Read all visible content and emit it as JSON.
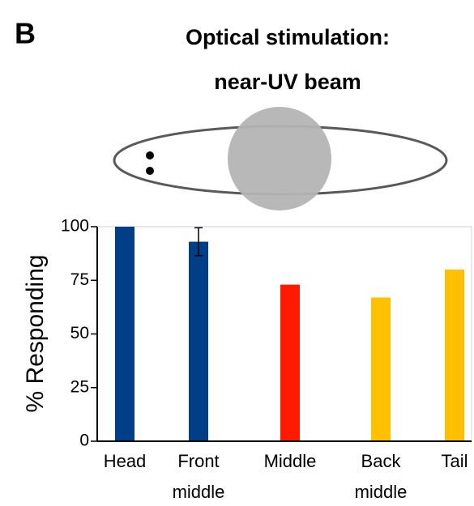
{
  "panel_label": "B",
  "chart_data": {
    "type": "bar",
    "title": [
      "Optical stimulation:",
      "near-UV beam"
    ],
    "y_label": "% Responding",
    "categories": [
      "Head",
      "Front middle",
      "Middle",
      "Back middle",
      "Tail"
    ],
    "values": [
      100,
      93,
      73,
      67,
      80
    ],
    "errors": [
      null,
      6.5,
      null,
      null,
      null
    ],
    "colors": [
      "#003f87",
      "#003f87",
      "#ff1a00",
      "#ffc000",
      "#ffc000"
    ],
    "ylim": [
      0,
      100
    ],
    "yticks": [
      0,
      25,
      50,
      75,
      100
    ]
  }
}
